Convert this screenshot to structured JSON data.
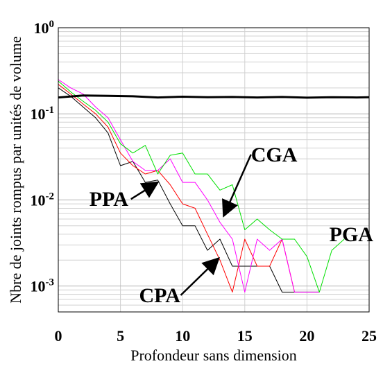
{
  "chart_data": {
    "type": "line",
    "xlabel": "Profondeur sans dimension",
    "ylabel": "Nbre de joints rompus par unités de volume",
    "xlim": [
      0,
      25
    ],
    "ylim": [
      0.0005,
      1
    ],
    "yscale": "log",
    "grid": true,
    "x_ticks": [
      0,
      5,
      10,
      15,
      20,
      25
    ],
    "y_ticks": [
      {
        "value": 1,
        "base": "10",
        "exp": "0"
      },
      {
        "value": 0.1,
        "base": "10",
        "exp": "-1"
      },
      {
        "value": 0.01,
        "base": "10",
        "exp": "-2"
      },
      {
        "value": 0.001,
        "base": "10",
        "exp": "-3"
      }
    ],
    "series": [
      {
        "color": "#000000",
        "width": 1,
        "x": [
          0,
          1,
          2,
          3,
          4,
          5,
          6,
          7,
          8,
          9,
          10,
          11,
          12,
          13,
          14,
          15,
          16,
          17,
          18,
          19,
          20,
          21
        ],
        "y": [
          0.2,
          0.16,
          0.12,
          0.09,
          0.06,
          0.025,
          0.028,
          0.016,
          0.017,
          0.009,
          0.005,
          0.005,
          0.0026,
          0.0035,
          0.0017,
          0.0017,
          0.0017,
          0.0017,
          0.00085,
          0.00085,
          0.00085,
          0.00085
        ]
      },
      {
        "color": "#ff0000",
        "width": 1,
        "x": [
          0,
          1,
          2,
          3,
          4,
          5,
          6,
          7,
          8,
          9,
          10,
          11,
          12,
          13,
          14,
          15,
          16,
          17,
          18,
          19
        ],
        "y": [
          0.22,
          0.17,
          0.13,
          0.1,
          0.07,
          0.035,
          0.025,
          0.02,
          0.022,
          0.015,
          0.009,
          0.008,
          0.004,
          0.002,
          0.00085,
          0.0035,
          0.0017,
          0.0017,
          0.0035,
          0.00085
        ]
      },
      {
        "color": "#ff00ff",
        "width": 1,
        "x": [
          0,
          1,
          2,
          3,
          4,
          5,
          6,
          7,
          8,
          9,
          10,
          11,
          12,
          13,
          14,
          15,
          16,
          17,
          18,
          19,
          20,
          21
        ],
        "y": [
          0.25,
          0.2,
          0.17,
          0.12,
          0.09,
          0.05,
          0.028,
          0.022,
          0.022,
          0.03,
          0.016,
          0.016,
          0.01,
          0.0055,
          0.0035,
          0.00085,
          0.0035,
          0.0026,
          0.0035,
          0.00085,
          0.00085,
          0.00085
        ]
      },
      {
        "color": "#00e000",
        "width": 1,
        "x": [
          0,
          1,
          2,
          3,
          4,
          5,
          6,
          7,
          8,
          9,
          10,
          11,
          12,
          13,
          14,
          15,
          16,
          17,
          18,
          19,
          20,
          21,
          22,
          23
        ],
        "y": [
          0.24,
          0.18,
          0.14,
          0.11,
          0.08,
          0.045,
          0.035,
          0.043,
          0.02,
          0.033,
          0.035,
          0.02,
          0.02,
          0.013,
          0.015,
          0.0045,
          0.006,
          0.0045,
          0.0035,
          0.0035,
          0.0022,
          0.00085,
          0.0026,
          0.0035
        ]
      },
      {
        "color": "#000000",
        "width": 3,
        "x": [
          0,
          2,
          4,
          6,
          8,
          10,
          12,
          14,
          16,
          18,
          20,
          22,
          24,
          25
        ],
        "y": [
          0.155,
          0.163,
          0.162,
          0.16,
          0.155,
          0.158,
          0.156,
          0.157,
          0.155,
          0.157,
          0.154,
          0.156,
          0.155,
          0.156
        ]
      }
    ],
    "annotations": [
      {
        "text": "PPA",
        "x": 2.5,
        "y": 0.0085,
        "arrow_to": [
          8.0,
          0.016
        ]
      },
      {
        "text": "CGA",
        "x": 15.5,
        "y": 0.028,
        "arrow_to": [
          13.3,
          0.0065
        ]
      },
      {
        "text": "CPA",
        "x": 6.5,
        "y": 0.00065,
        "arrow_to": [
          12.9,
          0.0021
        ]
      },
      {
        "text": "PGA",
        "x": 21.8,
        "y": 0.0033
      }
    ]
  }
}
